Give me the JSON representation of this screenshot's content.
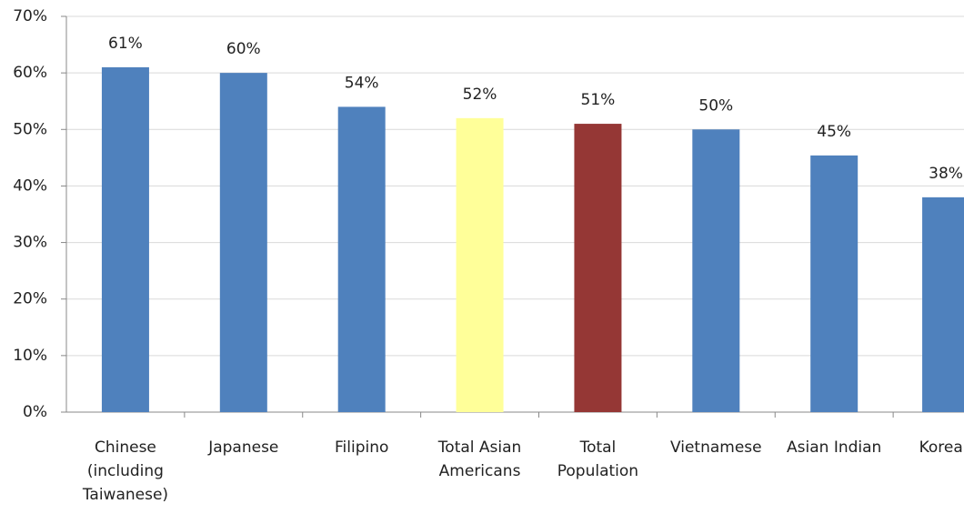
{
  "chart_data": {
    "type": "bar",
    "categories": [
      "Chinese\n(including\nTaiwanese)",
      "Japanese",
      "Filipino",
      "Total Asian\nAmericans",
      "Total\nPopulation",
      "Vietnamese",
      "Asian Indian",
      "Korean"
    ],
    "values": [
      61,
      60,
      54,
      52,
      51,
      50,
      45.4,
      38
    ],
    "value_labels": [
      "61%",
      "60%",
      "54%",
      "52%",
      "51%",
      "50%",
      "45%",
      "38%"
    ],
    "colors": [
      "#4f81bd",
      "#4f81bd",
      "#4f81bd",
      "#ffff99",
      "#953735",
      "#4f81bd",
      "#4f81bd",
      "#4f81bd"
    ],
    "ylim": [
      0,
      70
    ],
    "yticks": [
      {
        "value": 0,
        "label": "0%"
      },
      {
        "value": 10,
        "label": "10%"
      },
      {
        "value": 20,
        "label": "20%"
      },
      {
        "value": 30,
        "label": "30%"
      },
      {
        "value": 40,
        "label": "40%"
      },
      {
        "value": 50,
        "label": "50%"
      },
      {
        "value": 60,
        "label": "60%"
      },
      {
        "value": 70,
        "label": "70%"
      }
    ],
    "grid": true
  }
}
